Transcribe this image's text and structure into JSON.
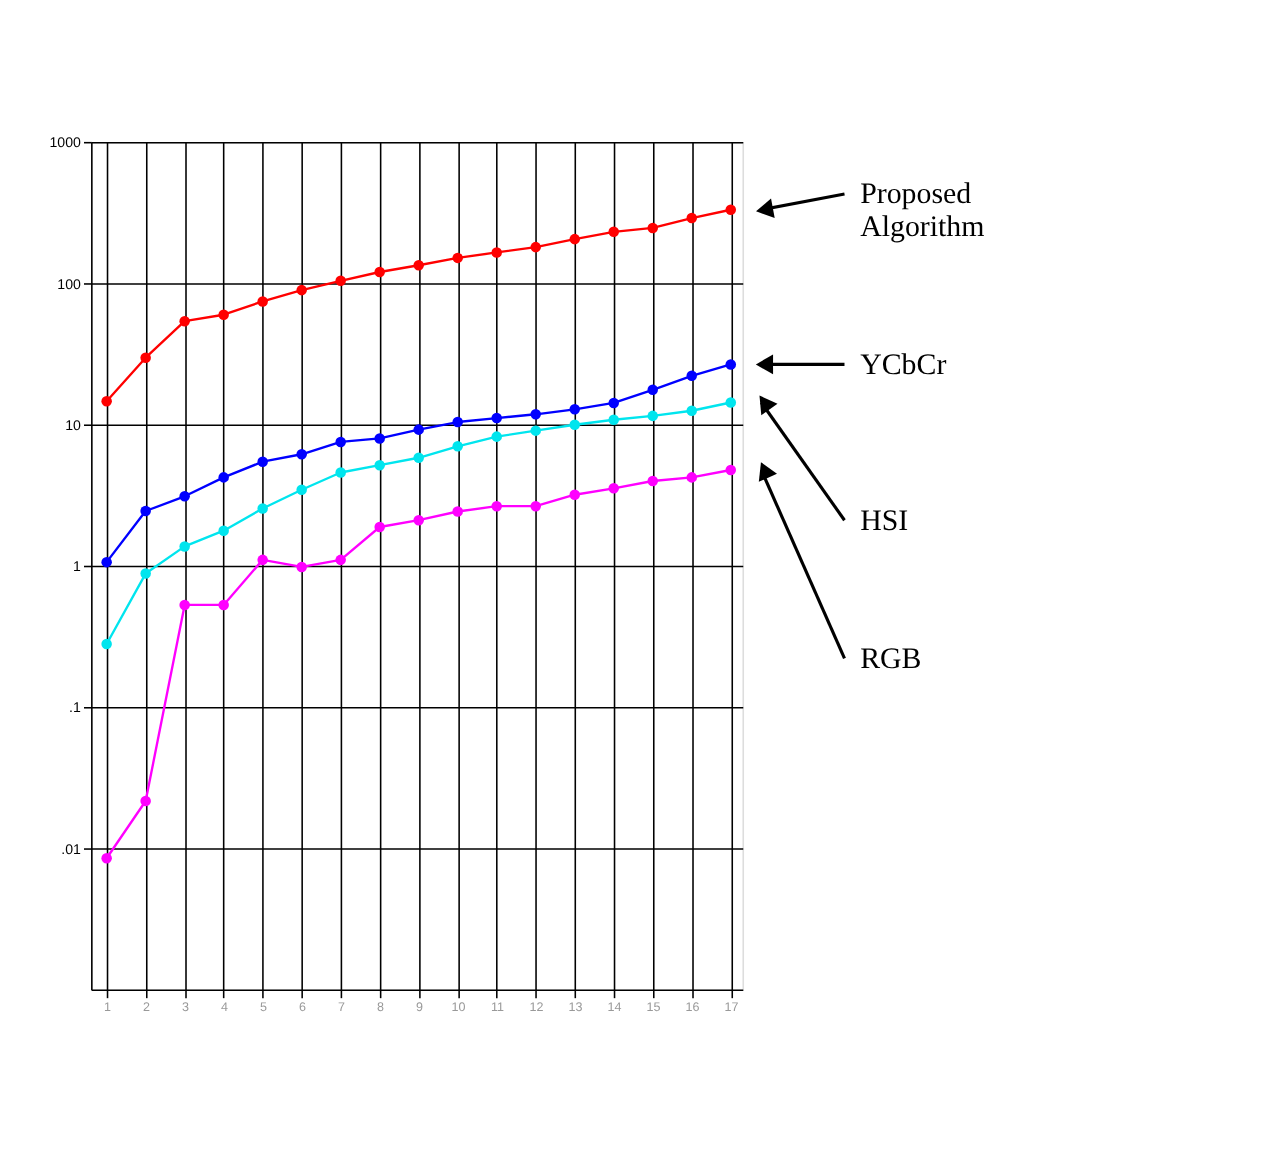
{
  "chart_data": {
    "type": "line",
    "log": "y",
    "grid": true,
    "marker": "circle",
    "line_style": "solid",
    "x": [
      1,
      2,
      3,
      4,
      5,
      6,
      7,
      8,
      9,
      10,
      11,
      12,
      13,
      14,
      15,
      16,
      17
    ],
    "xlim": [
      0.6,
      17.3
    ],
    "xticks": [
      1,
      2,
      3,
      4,
      5,
      6,
      7,
      8,
      9,
      10,
      11,
      12,
      13,
      14,
      15,
      16,
      17
    ],
    "ylim": [
      0.001,
      1000
    ],
    "yticks": [
      {
        "value": 0.01,
        "label": ".01"
      },
      {
        "value": 0.1,
        "label": ".1"
      },
      1,
      10,
      100,
      1000
    ],
    "series": [
      {
        "name": "Proposed Algorithm",
        "color": "#ff0000",
        "values": [
          14.6,
          29.7,
          53.8,
          59.8,
          74.3,
          89.3,
          104,
          120,
          134,
          151,
          165,
          180,
          205,
          231,
          246,
          289,
          331
        ]
      },
      {
        "name": "YCbCr",
        "color": "#0000ff",
        "values": [
          1.06,
          2.44,
          3.1,
          4.22,
          5.45,
          6.15,
          7.52,
          7.96,
          9.19,
          10.4,
          11.1,
          11.8,
          12.8,
          14.2,
          17.6,
          22.1,
          26.6
        ]
      },
      {
        "name": "HSI",
        "color": "#00e5ee",
        "values": [
          0.279,
          0.88,
          1.37,
          1.77,
          2.54,
          3.45,
          4.57,
          5.15,
          5.81,
          7.0,
          8.2,
          9.04,
          9.95,
          10.8,
          11.5,
          12.5,
          14.3
        ]
      },
      {
        "name": "RGB",
        "color": "#ff00ff",
        "values": [
          0.0085,
          0.0216,
          0.528,
          0.528,
          1.1,
          0.98,
          1.1,
          1.88,
          2.1,
          2.42,
          2.64,
          2.64,
          3.18,
          3.53,
          3.98,
          4.22,
          4.76
        ]
      }
    ]
  }
}
